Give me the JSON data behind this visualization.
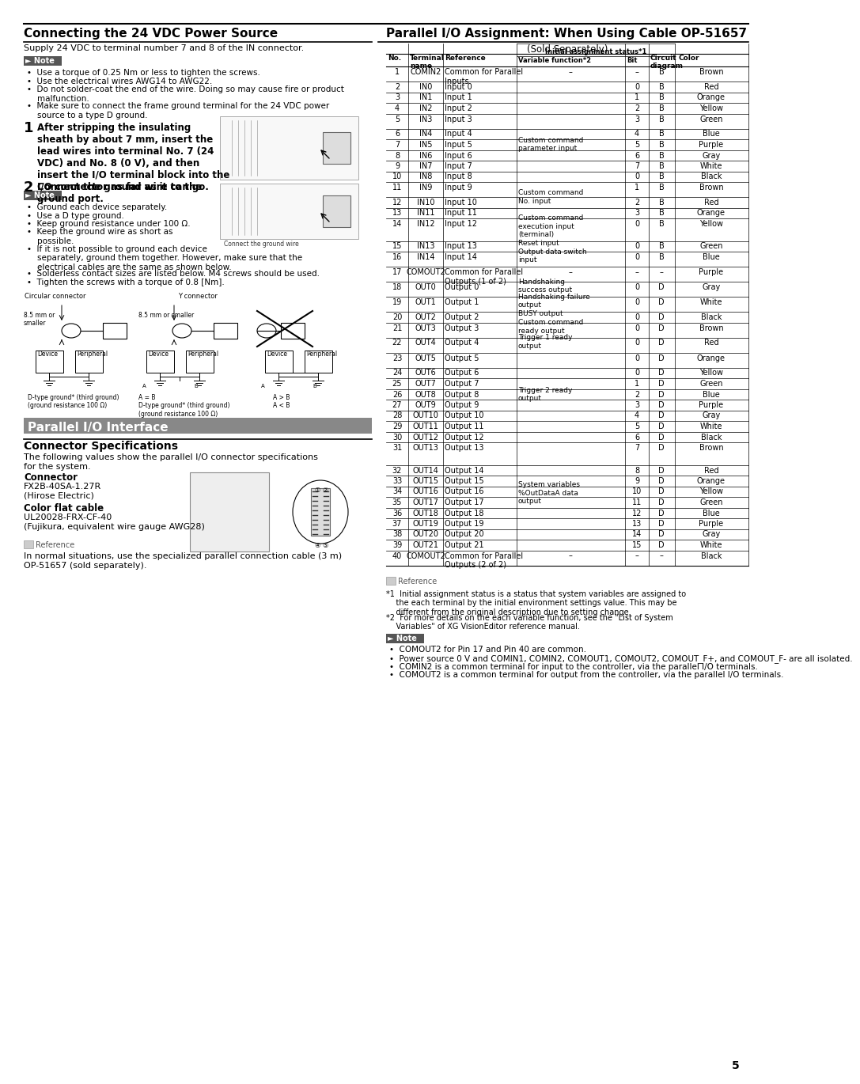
{
  "page_bg": "#ffffff",
  "section1_title": "Connecting the 24 VDC Power Source",
  "section1_subtitle": "Supply 24 VDC to terminal number 7 and 8 of the IN connector.",
  "note_label": "► Note",
  "note_bullets_1": [
    "Use a torque of 0.25 Nm or less to tighten the screws.",
    "Use the electrical wires AWG14 to AWG22.",
    "Do not solder-coat the end of the wire. Doing so may cause fire or product malfunction.",
    "Make sure to connect the frame ground terminal for the 24 VDC power source to a type D ground."
  ],
  "step1_text": "After stripping the insulating\nsheath by about 7 mm, insert the\nlead wires into terminal No. 7 (24\nVDC) and No. 8 (0 V), and then\ninsert the I/O terminal block into the\nI/O connector as far as it can go.",
  "step2_text": "Connect the ground wire to the\nground port.",
  "note_bullets_2": [
    "Ground each device separately.",
    "Use a D type ground.",
    "Keep ground resistance under 100 Ω.",
    "Keep the ground wire as short as possible.",
    "If it is not possible to ground each device separately, ground them together. However, make sure that the electrical cables are the same as shown below.",
    "Solderless contact sizes are listed below. M4 screws should be used.",
    "Tighten the screws with a torque of 0.8 [Nm]."
  ],
  "section2_title": "Parallel I/O Assignment: When Using Cable OP-51657",
  "section2_subtitle": "(Sold Separately)",
  "table_rows": [
    [
      1,
      "COMIN2",
      "Common for Parallel\nInputs",
      "–",
      "–",
      "B",
      "Brown"
    ],
    [
      2,
      "IN0",
      "Input 0",
      "",
      "0",
      "B",
      "Red"
    ],
    [
      3,
      "IN1",
      "Input 1",
      "",
      "1",
      "B",
      "Orange"
    ],
    [
      4,
      "IN2",
      "Input 2",
      "",
      "2",
      "B",
      "Yellow"
    ],
    [
      5,
      "IN3",
      "Input 3",
      "Custom command\nparameter input",
      "3",
      "B",
      "Green"
    ],
    [
      6,
      "IN4",
      "Input 4",
      "",
      "4",
      "B",
      "Blue"
    ],
    [
      7,
      "IN5",
      "Input 5",
      "",
      "5",
      "B",
      "Purple"
    ],
    [
      8,
      "IN6",
      "Input 6",
      "",
      "6",
      "B",
      "Gray"
    ],
    [
      9,
      "IN7",
      "Input 7",
      "",
      "7",
      "B",
      "White"
    ],
    [
      10,
      "IN8",
      "Input 8",
      "",
      "0",
      "B",
      "Black"
    ],
    [
      11,
      "IN9",
      "Input 9",
      "Custom command\nNo. input",
      "1",
      "B",
      "Brown"
    ],
    [
      12,
      "IN10",
      "Input 10",
      "",
      "2",
      "B",
      "Red"
    ],
    [
      13,
      "IN11",
      "Input 11",
      "",
      "3",
      "B",
      "Orange"
    ],
    [
      14,
      "IN12",
      "Input 12",
      "Custom command\nexecution input\n(terminal)",
      "0",
      "B",
      "Yellow"
    ],
    [
      15,
      "IN13",
      "Input 13",
      "Reset input",
      "0",
      "B",
      "Green"
    ],
    [
      16,
      "IN14",
      "Input 14",
      "Output data switch\ninput",
      "0",
      "B",
      "Blue"
    ],
    [
      17,
      "COMOUT2",
      "Common for Parallel\nOutputs (1 of 2)",
      "–",
      "–",
      "–",
      "Purple"
    ],
    [
      18,
      "OUT0",
      "Output 0",
      "Handshaking\nsuccess output",
      "0",
      "D",
      "Gray"
    ],
    [
      19,
      "OUT1",
      "Output 1",
      "Handshaking failure\noutput",
      "0",
      "D",
      "White"
    ],
    [
      20,
      "OUT2",
      "Output 2",
      "BUSY output",
      "0",
      "D",
      "Black"
    ],
    [
      21,
      "OUT3",
      "Output 3",
      "Custom command\nready output",
      "0",
      "D",
      "Brown"
    ],
    [
      22,
      "OUT4",
      "Output 4",
      "Trigger 1 ready\noutput",
      "0",
      "D",
      "Red"
    ],
    [
      23,
      "OUT5",
      "Output 5",
      "Trigger 2 ready\noutput",
      "0",
      "D",
      "Orange"
    ],
    [
      24,
      "OUT6",
      "Output 6",
      "",
      "0",
      "D",
      "Yellow"
    ],
    [
      25,
      "OUT7",
      "Output 7",
      "",
      "1",
      "D",
      "Green"
    ],
    [
      26,
      "OUT8",
      "Output 8",
      "",
      "2",
      "D",
      "Blue"
    ],
    [
      27,
      "OUT9",
      "Output 9",
      "",
      "3",
      "D",
      "Purple"
    ],
    [
      28,
      "OUT10",
      "Output 10",
      "",
      "4",
      "D",
      "Gray"
    ],
    [
      29,
      "OUT11",
      "Output 11",
      "",
      "5",
      "D",
      "White"
    ],
    [
      30,
      "OUT12",
      "Output 12",
      "",
      "6",
      "D",
      "Black"
    ],
    [
      31,
      "OUT13",
      "Output 13",
      "System variables\n%OutDataA data\noutput",
      "7",
      "D",
      "Brown"
    ],
    [
      32,
      "OUT14",
      "Output 14",
      "",
      "8",
      "D",
      "Red"
    ],
    [
      33,
      "OUT15",
      "Output 15",
      "",
      "9",
      "D",
      "Orange"
    ],
    [
      34,
      "OUT16",
      "Output 16",
      "",
      "10",
      "D",
      "Yellow"
    ],
    [
      35,
      "OUT17",
      "Output 17",
      "",
      "11",
      "D",
      "Green"
    ],
    [
      36,
      "OUT18",
      "Output 18",
      "",
      "12",
      "D",
      "Blue"
    ],
    [
      37,
      "OUT19",
      "Output 19",
      "",
      "13",
      "D",
      "Purple"
    ],
    [
      38,
      "OUT20",
      "Output 20",
      "",
      "14",
      "D",
      "Gray"
    ],
    [
      39,
      "OUT21",
      "Output 21",
      "",
      "15",
      "D",
      "White"
    ],
    [
      40,
      "COMOUT2",
      "Common for Parallel\nOutputs (2 of 2)",
      "–",
      "–",
      "–",
      "Black"
    ]
  ],
  "footnote1": "*1  Initial assignment status is a status that system variables are assigned to the each terminal by the initial environment settings value. This may be different from the original description due to setting change.",
  "footnote2": "*2  For more details on the each variable function, see the \"List of System Variables\" of XG VisionEditor reference manual.",
  "note_bullets_3": [
    "COMOUT2 for Pin 17 and Pin 40 are common.",
    "Power source 0 V and COMIN1, COMIN2, COMOUT1, COMOUT2, COMOUT_F+, and COMOUT_F- are all isolated.",
    "COMIN2 is a common terminal for input to the controller, via the parallel I/O terminals.",
    "COMOUT2 is a common terminal for output from the controller, via the parallel I/O terminals."
  ],
  "parallel_io_title": "Parallel I/O Interface",
  "connector_specs_title": "Connector Specifications",
  "connector_label": "Connector",
  "connector_value": "FX2B-40SA-1.27R\n(Hirose Electric)",
  "color_flat_cable_label": "Color flat cable",
  "color_flat_cable_value": "UL20028-FRX-CF-40\n(Fujikura, equivalent wire gauge AWG28)",
  "in_normal_text": "In normal situations, use the specialized parallel connection cable (3 m)\nOP-51657 (sold separately).",
  "page_number": "5"
}
